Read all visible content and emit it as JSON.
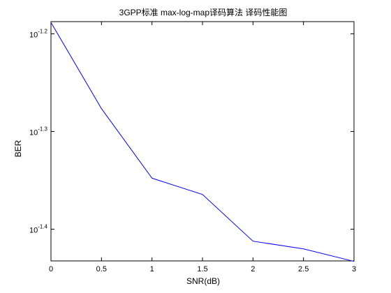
{
  "window": {
    "background": "#ffffff"
  },
  "chart_data": {
    "type": "line",
    "title": "3GPP标准 max-log-map译码算法 译码性能图",
    "xlabel": "SNR(dB)",
    "ylabel": "BER",
    "yscale": "log",
    "grid": false,
    "legend": "none",
    "xlim": [
      0,
      3
    ],
    "ylim_log10": [
      -1.4325,
      -1.1875
    ],
    "x_ticks": [
      {
        "value": 0,
        "label": "0"
      },
      {
        "value": 0.5,
        "label": "0.5"
      },
      {
        "value": 1,
        "label": "1"
      },
      {
        "value": 1.5,
        "label": "1.5"
      },
      {
        "value": 2,
        "label": "2"
      },
      {
        "value": 2.5,
        "label": "2.5"
      },
      {
        "value": 3,
        "label": "3"
      }
    ],
    "y_ticks": [
      {
        "log10": -1.2,
        "base": "10",
        "exponent": "-1.2"
      },
      {
        "log10": -1.3,
        "base": "10",
        "exponent": "-1.3"
      },
      {
        "log10": -1.4,
        "base": "10",
        "exponent": "-1.4"
      }
    ],
    "series": [
      {
        "color": "#0000ff",
        "x": [
          0,
          0.5,
          1,
          1.5,
          2,
          2.5,
          3
        ],
        "y": [
          0.0648,
          0.0529,
          0.0449,
          0.0432,
          0.0387,
          0.038,
          0.0369
        ]
      }
    ]
  }
}
